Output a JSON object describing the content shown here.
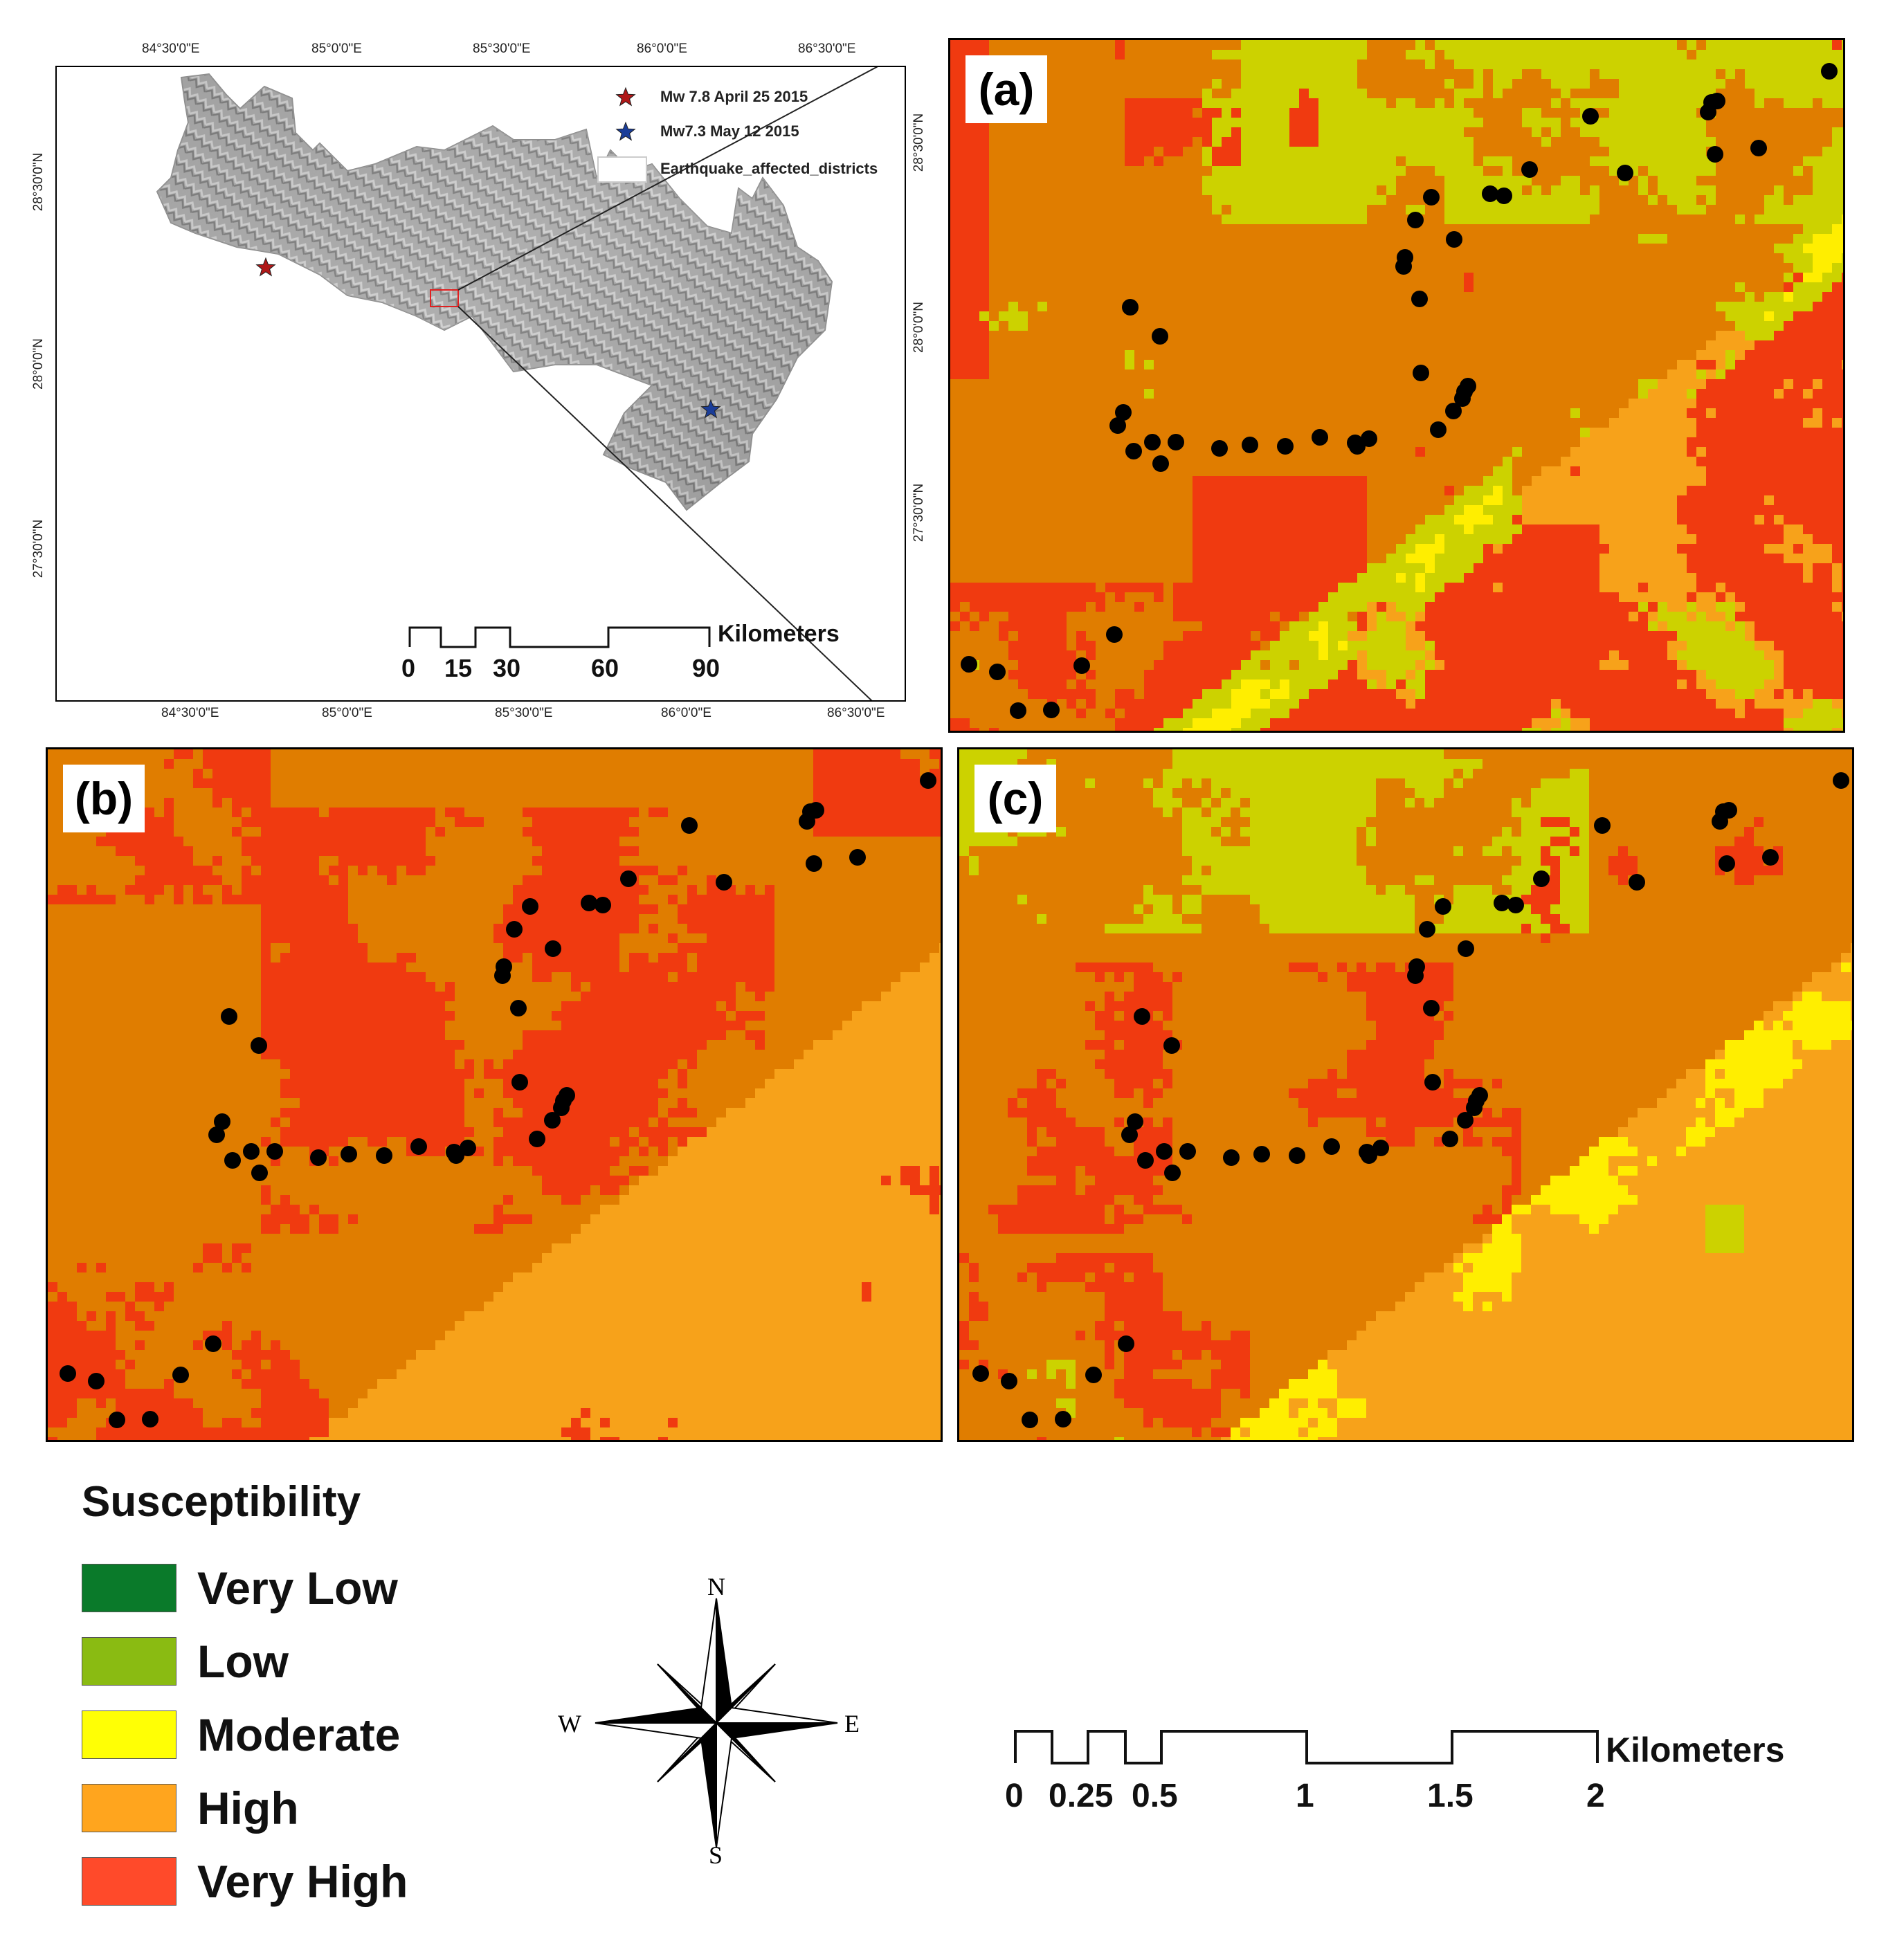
{
  "overview": {
    "top_ticks": [
      "84°30'0\"E",
      "85°0'0\"E",
      "85°30'0\"E",
      "86°0'0\"E",
      "86°30'0\"E"
    ],
    "bottom_ticks": [
      "84°30'0\"E",
      "85°0'0\"E",
      "85°30'0\"E",
      "86°0'0\"E",
      "86°30'0\"E"
    ],
    "left_ticks": [
      "28°30'0\"N",
      "28°0'0\"N",
      "27°30'0\"N"
    ],
    "legend": [
      {
        "symbol": "red-star-icon",
        "label": "Mw 7.8 April 25 2015",
        "color": "#b01818"
      },
      {
        "symbol": "blue-star-icon",
        "label": "Mw7.3 May 12 2015",
        "color": "#1a3d99"
      },
      {
        "symbol": "district-box",
        "label": "Earthquake_affected_districts"
      }
    ],
    "scalebar": {
      "ticks": [
        "0",
        "15",
        "30",
        "60",
        "90"
      ],
      "unit": "Kilometers"
    }
  },
  "panel_a": {
    "label": "(a)",
    "right_ticks": [
      "28°30'0\"N",
      "28°0'0\"N",
      "27°30'0\"N"
    ]
  },
  "panel_b": {
    "label": "(b)"
  },
  "panel_c": {
    "label": "(c)"
  },
  "legend": {
    "title": "Susceptibility",
    "items": [
      {
        "label": "Very Low",
        "color": "#0a7a2a"
      },
      {
        "label": "Low",
        "color": "#8abb12"
      },
      {
        "label": "Moderate",
        "color": "#ffff05"
      },
      {
        "label": "High",
        "color": "#ffa51e"
      },
      {
        "label": "Very High",
        "color": "#ff4a2a"
      }
    ]
  },
  "compass": {
    "n": "N",
    "s": "S",
    "e": "E",
    "w": "W"
  },
  "scalebar": {
    "ticks": [
      "0",
      "0.25",
      "0.5",
      "1",
      "1.5",
      "2"
    ],
    "unit": "Kilometers"
  }
}
